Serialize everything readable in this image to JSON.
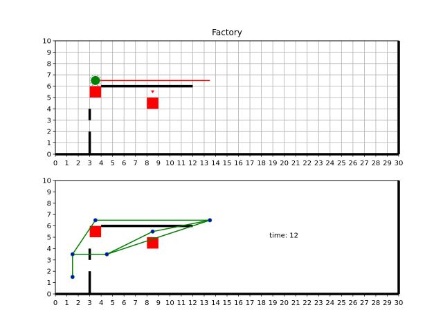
{
  "chart_data": [
    {
      "type": "scatter",
      "title": "Factory",
      "xlim": [
        0,
        30
      ],
      "ylim": [
        0,
        10
      ],
      "xticks": [
        "0",
        "1",
        "2",
        "3",
        "4",
        "5",
        "6",
        "7",
        "8",
        "9",
        "10",
        "11",
        "12",
        "13",
        "14",
        "15",
        "16",
        "17",
        "18",
        "19",
        "20",
        "21",
        "22",
        "23",
        "24",
        "25",
        "26",
        "27",
        "28",
        "29",
        "30"
      ],
      "yticks": [
        "0",
        "1",
        "2",
        "3",
        "4",
        "5",
        "6",
        "7",
        "8",
        "9",
        "10"
      ],
      "grid": true,
      "walls": [
        {
          "x": [
            0,
            30
          ],
          "y": [
            0,
            0
          ]
        },
        {
          "x": [
            30,
            30
          ],
          "y": [
            0,
            10
          ]
        },
        {
          "x": [
            3,
            3
          ],
          "y": [
            0,
            2
          ]
        },
        {
          "x": [
            3,
            3
          ],
          "y": [
            3,
            4
          ]
        },
        {
          "x": [
            4,
            12
          ],
          "y": [
            6,
            6
          ]
        }
      ],
      "obstacles": [
        {
          "x": 3.5,
          "y": 5.5,
          "size": 1
        },
        {
          "x": 8.5,
          "y": 4.5,
          "size": 1
        }
      ],
      "robot": {
        "x": 3.5,
        "y": 6.5
      },
      "heading_line": {
        "x": [
          3.5,
          13.5
        ],
        "y": [
          6.5,
          6.5
        ]
      },
      "marker": {
        "x": 8.5,
        "y": 5.5
      }
    },
    {
      "type": "line",
      "title": "",
      "annotation": "time: 12",
      "annotation_pos": {
        "x": 19,
        "y": 5.2
      },
      "xlim": [
        0,
        30
      ],
      "ylim": [
        0,
        10
      ],
      "xticks": [
        "0",
        "1",
        "2",
        "3",
        "4",
        "5",
        "6",
        "7",
        "8",
        "9",
        "10",
        "11",
        "12",
        "13",
        "14",
        "15",
        "16",
        "17",
        "18",
        "19",
        "20",
        "21",
        "22",
        "23",
        "24",
        "25",
        "26",
        "27",
        "28",
        "29",
        "30"
      ],
      "yticks": [
        "0",
        "1",
        "2",
        "3",
        "4",
        "5",
        "6",
        "7",
        "8",
        "9",
        "10"
      ],
      "grid": false,
      "walls": [
        {
          "x": [
            0,
            30
          ],
          "y": [
            0,
            0
          ]
        },
        {
          "x": [
            30,
            30
          ],
          "y": [
            0,
            10
          ]
        },
        {
          "x": [
            3,
            3
          ],
          "y": [
            0,
            2
          ]
        },
        {
          "x": [
            3,
            3
          ],
          "y": [
            3,
            4
          ]
        },
        {
          "x": [
            4,
            12
          ],
          "y": [
            6,
            6
          ]
        }
      ],
      "obstacles": [
        {
          "x": 3.5,
          "y": 5.5,
          "size": 1
        },
        {
          "x": 8.5,
          "y": 4.5,
          "size": 1
        }
      ],
      "graph_edges": [
        {
          "x": [
            1.5,
            1.5
          ],
          "y": [
            1.5,
            3.5
          ]
        },
        {
          "x": [
            1.5,
            4.5
          ],
          "y": [
            3.5,
            3.5
          ]
        },
        {
          "x": [
            1.5,
            3.5
          ],
          "y": [
            3.5,
            6.5
          ]
        },
        {
          "x": [
            3.5,
            13.5
          ],
          "y": [
            6.5,
            6.5
          ]
        },
        {
          "x": [
            4.5,
            13.5
          ],
          "y": [
            3.5,
            6.5
          ]
        },
        {
          "x": [
            4.5,
            8.5
          ],
          "y": [
            3.5,
            5.5
          ]
        },
        {
          "x": [
            8.5,
            13.5
          ],
          "y": [
            5.5,
            6.5
          ]
        }
      ],
      "nodes": [
        {
          "x": 1.5,
          "y": 1.5
        },
        {
          "x": 1.5,
          "y": 3.5
        },
        {
          "x": 4.5,
          "y": 3.5
        },
        {
          "x": 3.5,
          "y": 6.5
        },
        {
          "x": 13.5,
          "y": 6.5
        },
        {
          "x": 8.5,
          "y": 5.5
        }
      ]
    }
  ],
  "colors": {
    "wall": "#000000",
    "obstacle": "#ff0000",
    "robot": "#008000",
    "heading": "#ff0000",
    "edge": "#008000",
    "node": "#0000ff",
    "grid": "#b0b0b0"
  }
}
